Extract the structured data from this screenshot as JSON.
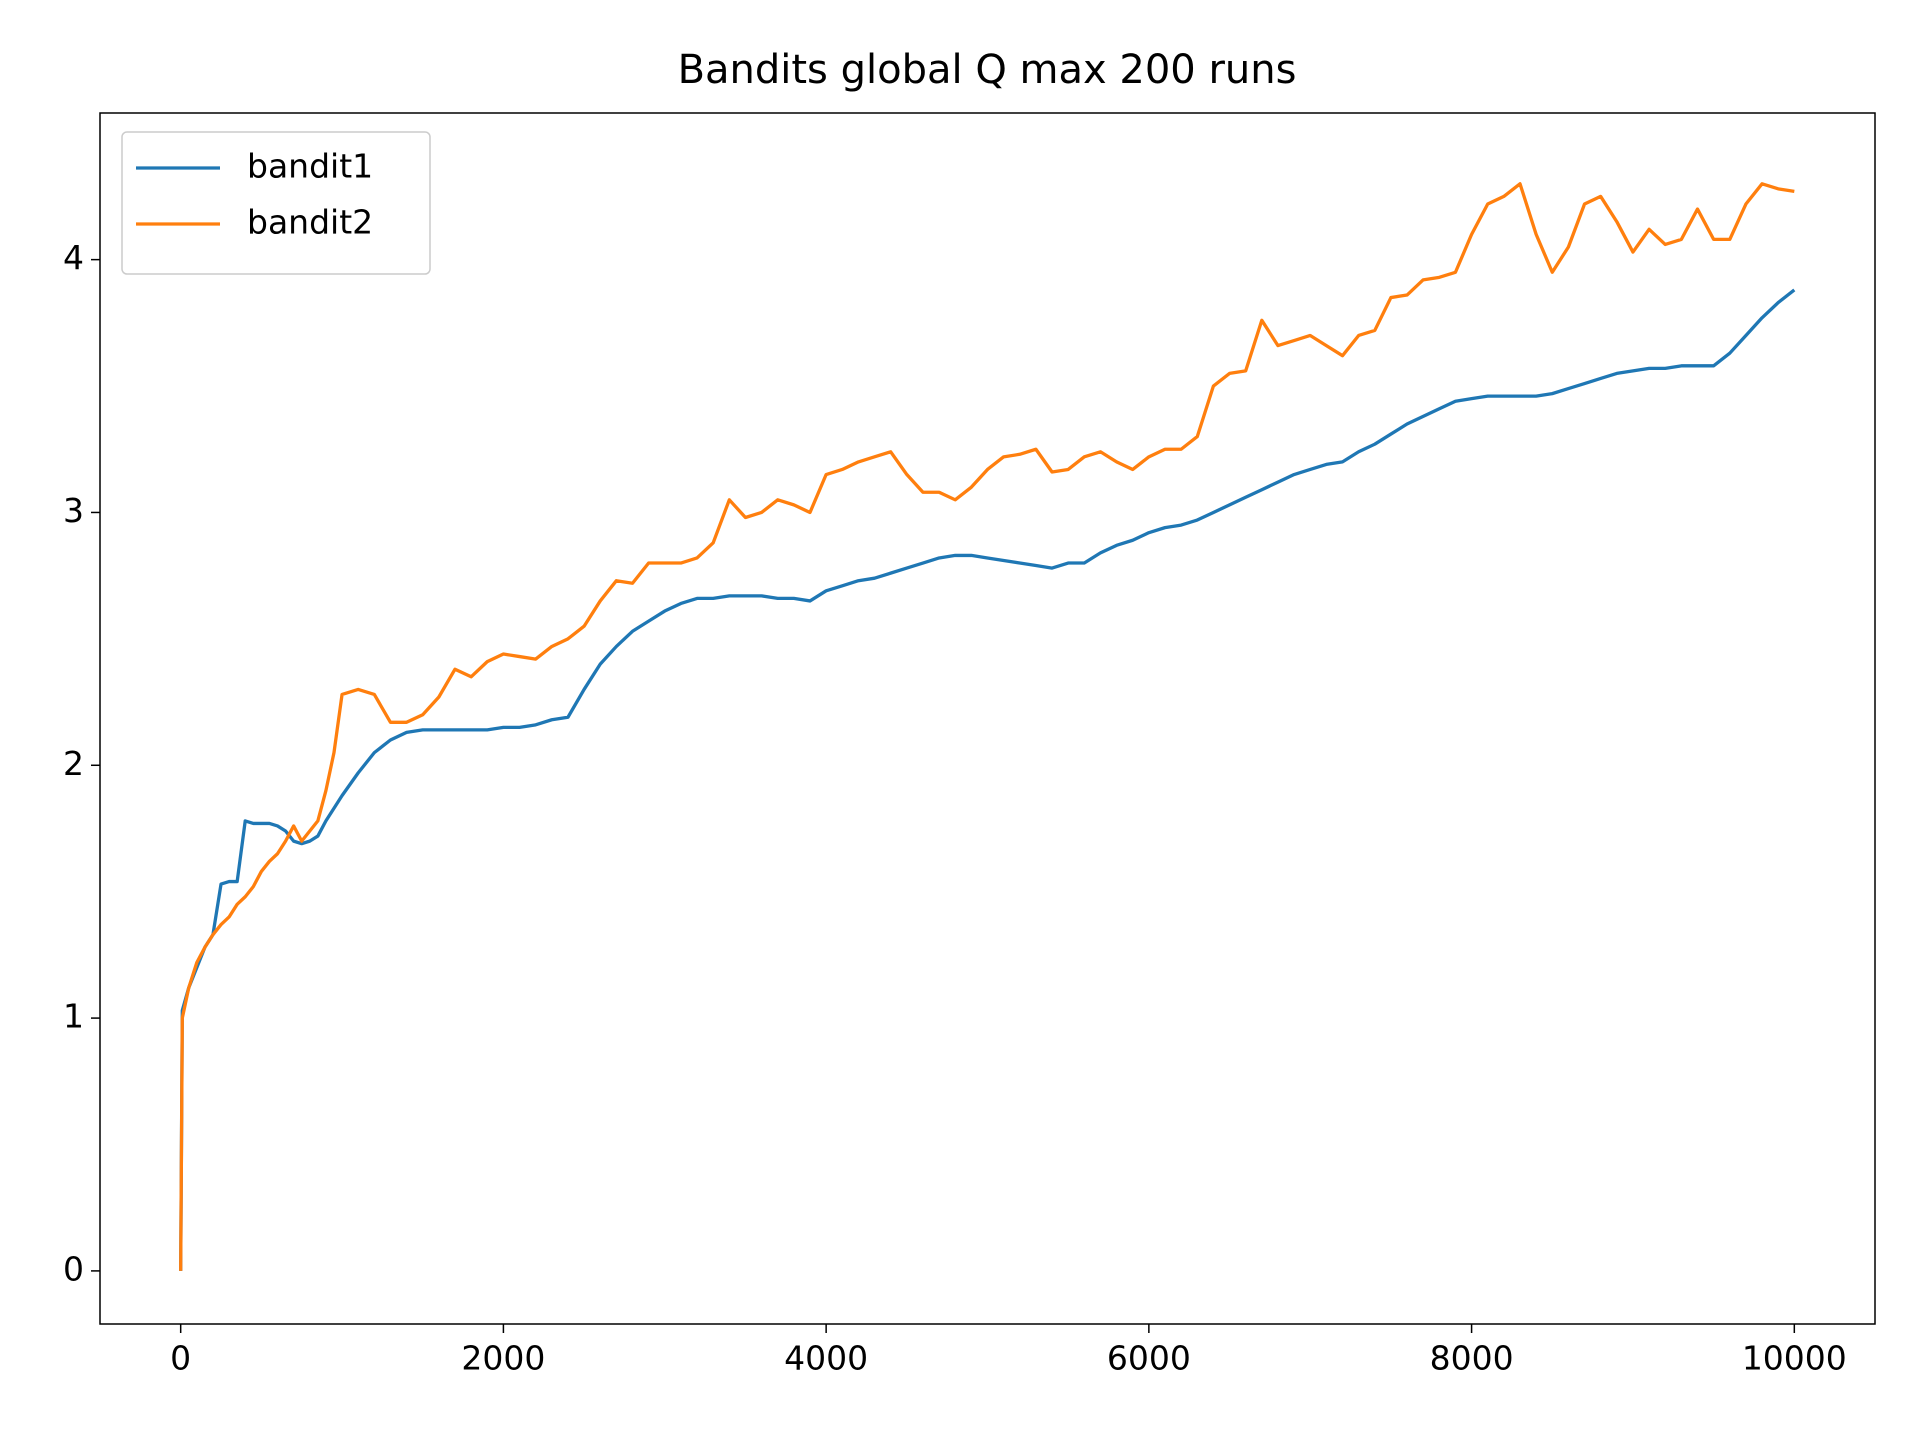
{
  "chart_data": {
    "type": "line",
    "title": "Bandits global Q max 200 runs",
    "x": [
      0,
      10,
      50,
      100,
      150,
      200,
      250,
      300,
      350,
      400,
      450,
      500,
      550,
      600,
      650,
      700,
      750,
      800,
      850,
      900,
      950,
      1000,
      1100,
      1200,
      1300,
      1400,
      1500,
      1600,
      1700,
      1800,
      1900,
      2000,
      2100,
      2200,
      2300,
      2400,
      2500,
      2600,
      2700,
      2800,
      2900,
      3000,
      3100,
      3200,
      3300,
      3400,
      3500,
      3600,
      3700,
      3800,
      3900,
      4000,
      4100,
      4200,
      4300,
      4400,
      4500,
      4600,
      4700,
      4800,
      4900,
      5000,
      5100,
      5200,
      5300,
      5400,
      5500,
      5600,
      5700,
      5800,
      5900,
      6000,
      6100,
      6200,
      6300,
      6400,
      6500,
      6600,
      6700,
      6800,
      6900,
      7000,
      7100,
      7200,
      7300,
      7400,
      7500,
      7600,
      7700,
      7800,
      7900,
      8000,
      8100,
      8200,
      8300,
      8400,
      8500,
      8600,
      8700,
      8800,
      8900,
      9000,
      9100,
      9200,
      9300,
      9400,
      9500,
      9600,
      9700,
      9800,
      9900,
      10000
    ],
    "series": [
      {
        "name": "bandit1",
        "color": "#1f77b4",
        "values": [
          0,
          1.03,
          1.12,
          1.2,
          1.28,
          1.33,
          1.53,
          1.54,
          1.54,
          1.78,
          1.77,
          1.77,
          1.77,
          1.76,
          1.74,
          1.7,
          1.69,
          1.7,
          1.72,
          1.78,
          1.83,
          1.88,
          1.97,
          2.05,
          2.1,
          2.13,
          2.14,
          2.14,
          2.14,
          2.14,
          2.14,
          2.15,
          2.15,
          2.16,
          2.18,
          2.19,
          2.3,
          2.4,
          2.47,
          2.53,
          2.57,
          2.61,
          2.64,
          2.66,
          2.66,
          2.67,
          2.67,
          2.67,
          2.66,
          2.66,
          2.65,
          2.69,
          2.71,
          2.73,
          2.74,
          2.76,
          2.78,
          2.8,
          2.82,
          2.83,
          2.83,
          2.82,
          2.81,
          2.8,
          2.79,
          2.78,
          2.8,
          2.8,
          2.84,
          2.87,
          2.89,
          2.92,
          2.94,
          2.95,
          2.97,
          3.0,
          3.03,
          3.06,
          3.09,
          3.12,
          3.15,
          3.17,
          3.19,
          3.2,
          3.24,
          3.27,
          3.31,
          3.35,
          3.38,
          3.41,
          3.44,
          3.45,
          3.46,
          3.46,
          3.46,
          3.46,
          3.47,
          3.49,
          3.51,
          3.53,
          3.55,
          3.56,
          3.57,
          3.57,
          3.58,
          3.58,
          3.58,
          3.63,
          3.7,
          3.77,
          3.83,
          3.88
        ]
      },
      {
        "name": "bandit2",
        "color": "#ff7f0e",
        "values": [
          0,
          1.0,
          1.12,
          1.22,
          1.28,
          1.33,
          1.37,
          1.4,
          1.45,
          1.48,
          1.52,
          1.58,
          1.62,
          1.65,
          1.7,
          1.76,
          1.7,
          1.74,
          1.78,
          1.9,
          2.05,
          2.28,
          2.3,
          2.28,
          2.17,
          2.17,
          2.2,
          2.27,
          2.38,
          2.35,
          2.41,
          2.44,
          2.43,
          2.42,
          2.47,
          2.5,
          2.55,
          2.65,
          2.73,
          2.72,
          2.8,
          2.8,
          2.8,
          2.82,
          2.88,
          3.05,
          2.98,
          3.0,
          3.05,
          3.03,
          3.0,
          3.15,
          3.17,
          3.2,
          3.22,
          3.24,
          3.15,
          3.08,
          3.08,
          3.05,
          3.1,
          3.17,
          3.22,
          3.23,
          3.25,
          3.16,
          3.17,
          3.22,
          3.24,
          3.2,
          3.17,
          3.22,
          3.25,
          3.25,
          3.3,
          3.5,
          3.55,
          3.56,
          3.76,
          3.66,
          3.68,
          3.7,
          3.66,
          3.62,
          3.7,
          3.72,
          3.85,
          3.86,
          3.92,
          3.93,
          3.95,
          4.1,
          4.22,
          4.25,
          4.3,
          4.1,
          3.95,
          4.05,
          4.22,
          4.25,
          4.15,
          4.03,
          4.12,
          4.06,
          4.08,
          4.2,
          4.08,
          4.08,
          4.22,
          4.3,
          4.28,
          4.27
        ]
      }
    ],
    "xlim": [
      -500,
      10500
    ],
    "xticks": [
      0,
      2000,
      4000,
      6000,
      8000,
      10000
    ],
    "ylim": [
      -0.21,
      4.58
    ],
    "yticks": [
      0,
      1,
      2,
      3,
      4
    ],
    "legend": "upper left",
    "grid": false
  }
}
